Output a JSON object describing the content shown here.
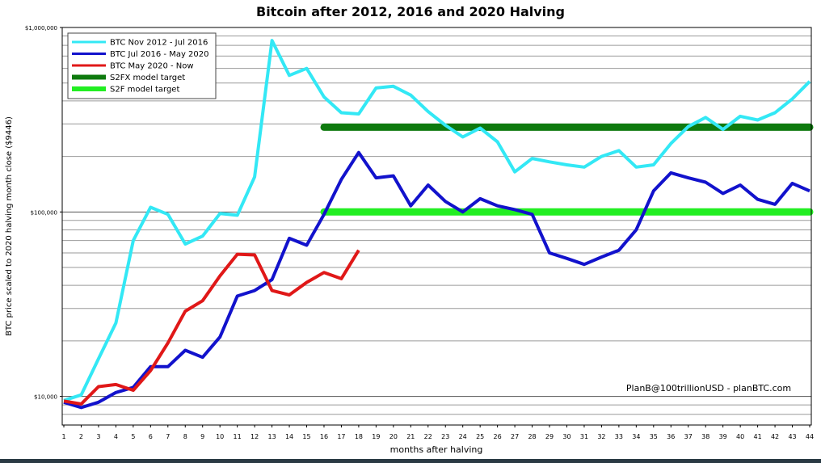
{
  "chart_data": {
    "type": "line",
    "title": "Bitcoin after 2012, 2016 and 2020 Halving",
    "xlabel": "months after halving",
    "ylabel": "BTC price scaled to 2020 halving month close ($9446)",
    "y_scale": "log",
    "ylim": [
      7000,
      1000000
    ],
    "xlim": [
      1,
      44
    ],
    "x_ticks": [
      1,
      2,
      3,
      4,
      5,
      6,
      7,
      8,
      9,
      10,
      11,
      12,
      13,
      14,
      15,
      16,
      17,
      18,
      19,
      20,
      21,
      22,
      23,
      24,
      25,
      26,
      27,
      28,
      29,
      30,
      31,
      32,
      33,
      34,
      35,
      36,
      37,
      38,
      39,
      40,
      41,
      42,
      43,
      44
    ],
    "y_tick_labels": [
      {
        "value": 10000,
        "label": "$10,000"
      },
      {
        "value": 100000,
        "label": "$100,000"
      },
      {
        "value": 1000000,
        "label": "$1,000,000"
      }
    ],
    "grid": true,
    "legend_position": "top-left",
    "annotation": "PlanB@100trillionUSD  -  planBTC.com",
    "series": [
      {
        "name": "BTC Nov 2012 - Jul 2016",
        "color": "#33e8f5",
        "width": 4,
        "x": [
          1,
          2,
          3,
          4,
          5,
          6,
          7,
          8,
          9,
          10,
          11,
          12,
          13,
          14,
          15,
          16,
          17,
          18,
          19,
          20,
          21,
          22,
          23,
          24,
          25,
          26,
          27,
          28,
          29,
          30,
          31,
          32,
          33,
          34,
          35,
          36,
          37,
          38,
          39,
          40,
          41,
          42,
          43,
          44
        ],
        "values": [
          9500,
          10200,
          16000,
          25000,
          70000,
          106000,
          97000,
          67000,
          74000,
          98000,
          96000,
          155000,
          850000,
          550000,
          600000,
          420000,
          345000,
          340000,
          470000,
          480000,
          430000,
          350000,
          295000,
          255000,
          285000,
          240000,
          165000,
          195000,
          187000,
          180000,
          175000,
          200000,
          215000,
          175000,
          180000,
          235000,
          290000,
          325000,
          280000,
          330000,
          315000,
          345000,
          410000,
          510000
        ]
      },
      {
        "name": "BTC Jul 2016 - May 2020",
        "color": "#1212cc",
        "width": 4,
        "x": [
          1,
          2,
          3,
          4,
          5,
          6,
          7,
          8,
          9,
          10,
          11,
          12,
          13,
          14,
          15,
          16,
          17,
          18,
          19,
          20,
          21,
          22,
          23,
          24,
          25,
          26,
          27,
          28,
          29,
          30,
          31,
          32,
          33,
          34,
          35,
          36,
          37,
          38,
          39,
          40,
          41,
          42,
          43,
          44
        ],
        "values": [
          9300,
          8700,
          9300,
          10500,
          11200,
          14500,
          14500,
          17800,
          16300,
          21000,
          35000,
          37500,
          43000,
          72000,
          66000,
          97000,
          150000,
          210000,
          153000,
          157000,
          108000,
          140000,
          114000,
          100000,
          118000,
          108000,
          103000,
          97000,
          60000,
          56000,
          52000,
          57000,
          62000,
          80000,
          130000,
          163000,
          153000,
          145000,
          126000,
          140000,
          117000,
          110000,
          143000,
          130000
        ]
      },
      {
        "name": "BTC May 2020 - Now",
        "color": "#e01818",
        "width": 4,
        "x": [
          1,
          2,
          3,
          4,
          5,
          6,
          7,
          8,
          9,
          10,
          11,
          12,
          13,
          14,
          15,
          16,
          17,
          18
        ],
        "values": [
          9446,
          9100,
          11300,
          11600,
          10800,
          13800,
          19500,
          29000,
          33000,
          45000,
          59000,
          58500,
          37500,
          35500,
          41500,
          47000,
          43500,
          62000
        ]
      },
      {
        "name": "S2FX model target",
        "color": "#0e7a0e",
        "width": 9,
        "x": [
          16,
          44
        ],
        "values": [
          288000,
          288000
        ]
      },
      {
        "name": "S2F model target",
        "color": "#22ee22",
        "width": 9,
        "x": [
          16,
          44
        ],
        "values": [
          100000,
          100000
        ]
      }
    ]
  }
}
